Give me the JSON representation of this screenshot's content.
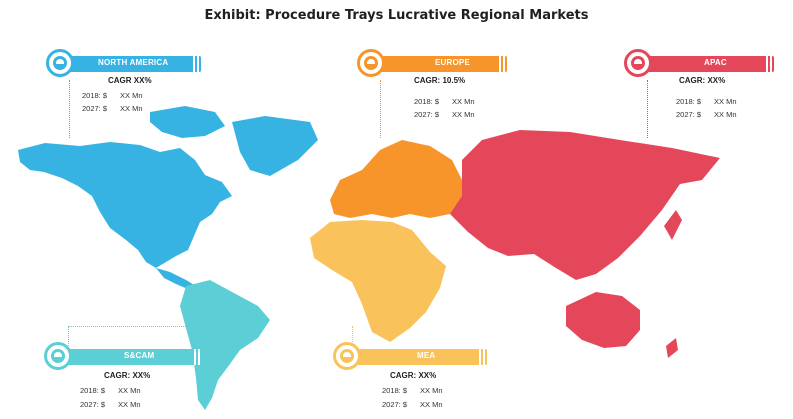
{
  "title": "Exhibit: Procedure Trays Lucrative Regional Markets",
  "colors": {
    "north_america": "#36b3e3",
    "europe": "#f7952a",
    "apac": "#e5475a",
    "scam": "#5bcfd5",
    "mea": "#f9c25a"
  },
  "regions": {
    "north_america": {
      "name": "NORTH AMERICA",
      "cagr": "CAGR XX%",
      "y2018_label": "2018: $",
      "y2018_value": "XX Mn",
      "y2027_label": "2027: $",
      "y2027_value": "XX Mn"
    },
    "europe": {
      "name": "EUROPE",
      "cagr": "CAGR: 10.5%",
      "y2018_label": "2018: $",
      "y2018_value": "XX Mn",
      "y2027_label": "2027: $",
      "y2027_value": "XX Mn"
    },
    "apac": {
      "name": "APAC",
      "cagr": "CAGR: XX%",
      "y2018_label": "2018: $",
      "y2018_value": "XX Mn",
      "y2027_label": "2027: $",
      "y2027_value": "XX Mn"
    },
    "scam": {
      "name": "S&CAM",
      "cagr": "CAGR: XX%",
      "y2018_label": "2018: $",
      "y2018_value": "XX Mn",
      "y2027_label": "2027: $",
      "y2027_value": "XX Mn"
    },
    "mea": {
      "name": "MEA",
      "cagr": "CAGR: XX%",
      "y2018_label": "2018: $",
      "y2018_value": "XX Mn",
      "y2027_label": "2027: $",
      "y2027_value": "XX Mn"
    }
  }
}
